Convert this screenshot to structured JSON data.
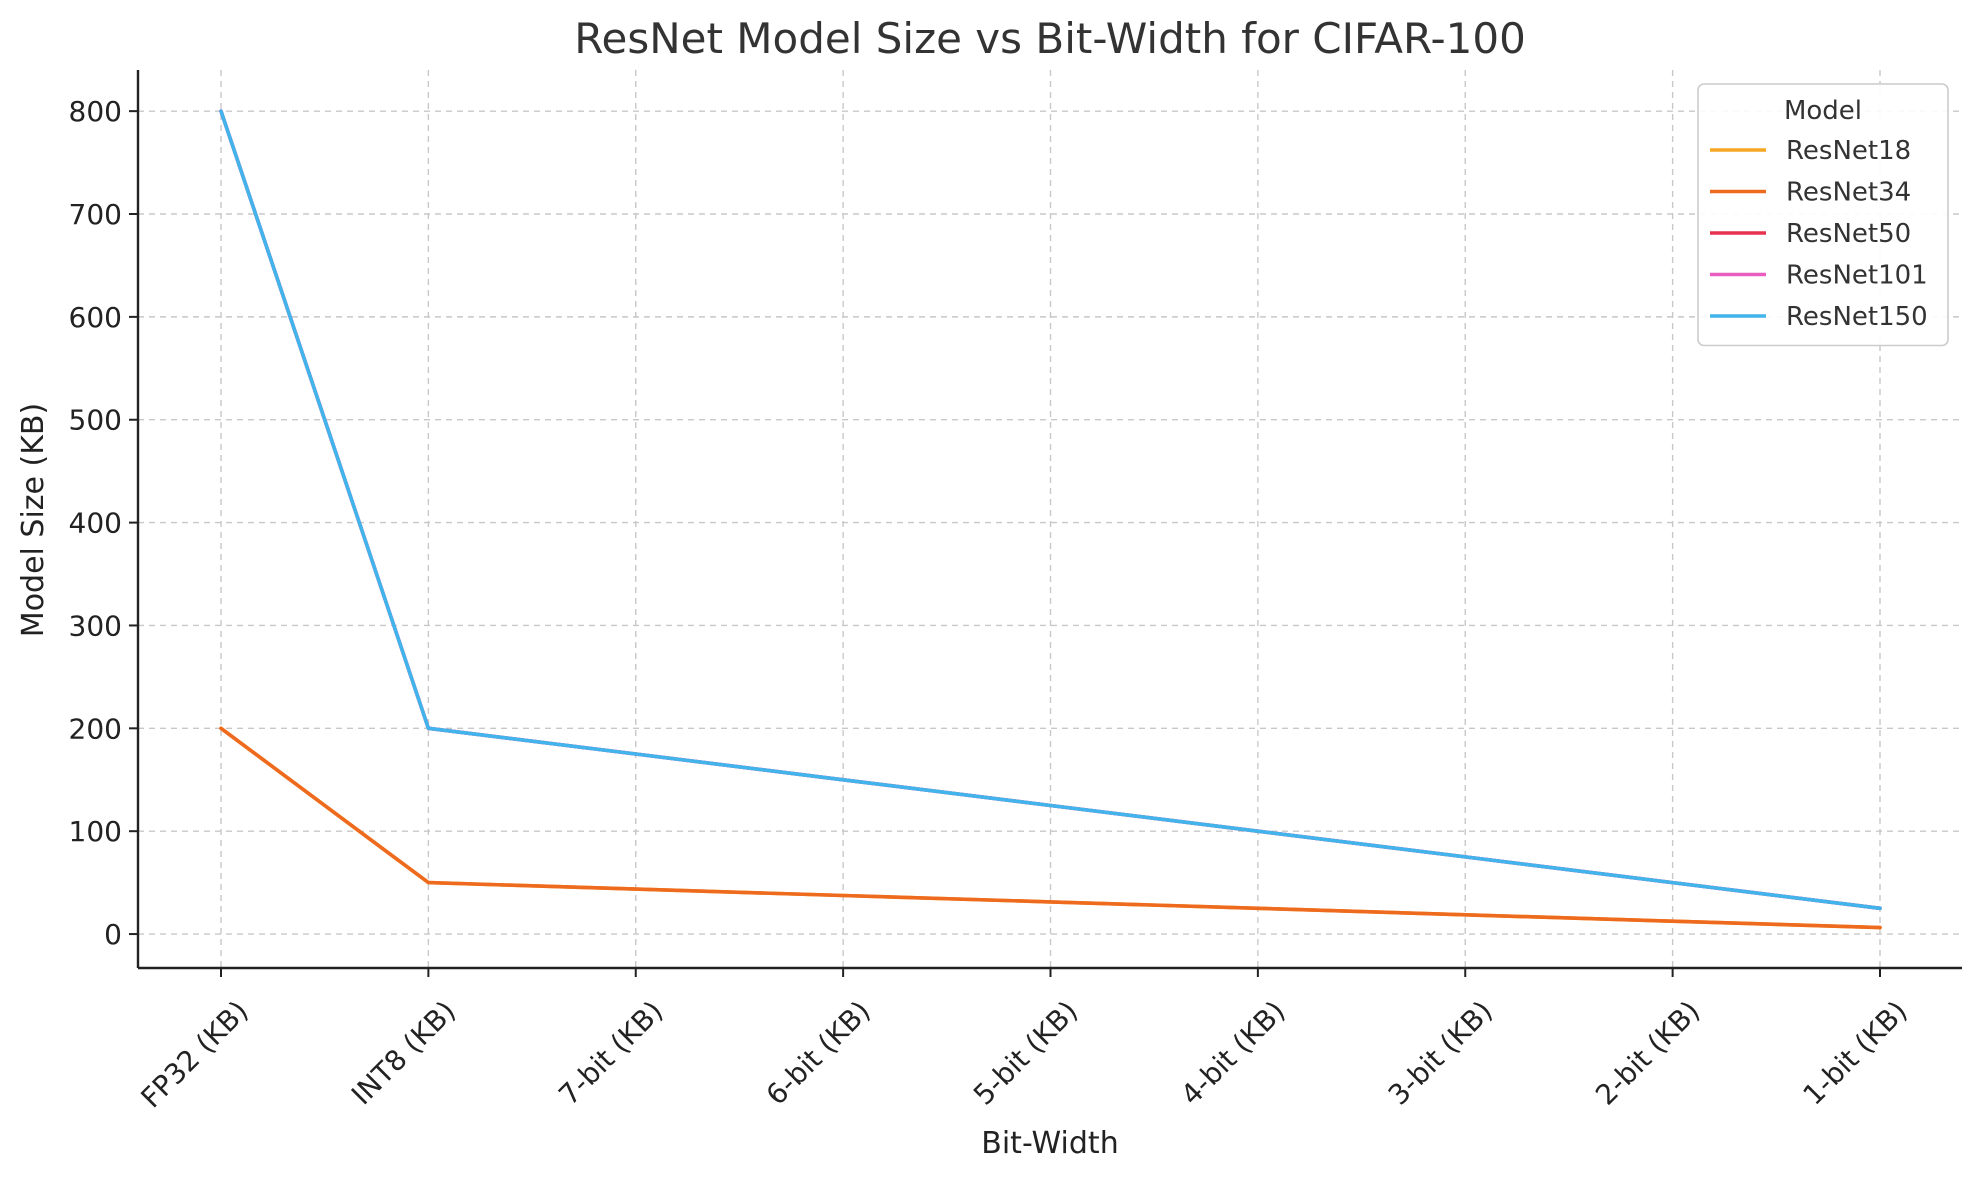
{
  "chart_data": {
    "type": "line",
    "title": "ResNet Model Size vs Bit-Width for CIFAR-100",
    "xlabel": "Bit-Width",
    "ylabel": "Model Size (KB)",
    "categories": [
      "FP32 (KB)",
      "INT8 (KB)",
      "7-bit (KB)",
      "6-bit (KB)",
      "5-bit (KB)",
      "4-bit (KB)",
      "3-bit (KB)",
      "2-bit (KB)",
      "1-bit (KB)"
    ],
    "ylim": [
      -33,
      840
    ],
    "yticks": [
      0,
      100,
      200,
      300,
      400,
      500,
      600,
      700,
      800
    ],
    "grid": true,
    "legend": {
      "title": "Model",
      "position": "top-right"
    },
    "series": [
      {
        "name": "ResNet18",
        "color": "#f5a623",
        "values": [
          200,
          50,
          43.75,
          37.5,
          31.25,
          25,
          18.75,
          12.5,
          6.25
        ]
      },
      {
        "name": "ResNet34",
        "color": "#ee6a1f",
        "values": [
          200,
          50,
          43.75,
          37.5,
          31.25,
          25,
          18.75,
          12.5,
          6.25
        ]
      },
      {
        "name": "ResNet50",
        "color": "#e8304f",
        "values": [
          800,
          200,
          175,
          150,
          125,
          100,
          75,
          50,
          25
        ]
      },
      {
        "name": "ResNet101",
        "color": "#e95cc0",
        "values": [
          800,
          200,
          175,
          150,
          125,
          100,
          75,
          50,
          25
        ]
      },
      {
        "name": "ResNet150",
        "color": "#42b4ec",
        "values": [
          800,
          200,
          175,
          150,
          125,
          100,
          75,
          50,
          25
        ]
      }
    ]
  }
}
